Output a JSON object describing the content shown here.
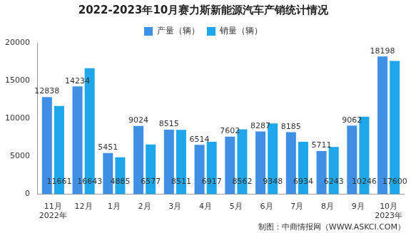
{
  "chart_data": {
    "type": "bar",
    "title": "2022-2023年10月赛力斯新能源汽车产销统计情况",
    "categories": [
      [
        "11月",
        "2022年"
      ],
      "12月",
      "1月",
      "2月",
      "3月",
      "4月",
      "5月",
      "6月",
      "7月",
      "8月",
      "9月",
      [
        "10月",
        "2023年"
      ]
    ],
    "series": [
      {
        "name": "产量（辆）",
        "color": "#3f8fe4",
        "values": [
          12838,
          14234,
          5451,
          9024,
          8515,
          6514,
          7602,
          8287,
          8185,
          5711,
          9062,
          18198
        ]
      },
      {
        "name": "销量（辆）",
        "color": "#1ea6ea",
        "values": [
          11661,
          16643,
          4885,
          6577,
          8511,
          6917,
          8562,
          9348,
          6934,
          6243,
          10246,
          17600
        ]
      }
    ],
    "ylim": [
      0,
      20000
    ],
    "yticks": [
      0,
      5000,
      10000,
      15000,
      20000
    ],
    "grid": false,
    "legend": "top",
    "data_labels": true,
    "annotations": [
      "制图：中商情报网（WWW.ASKCI.COM）"
    ]
  }
}
